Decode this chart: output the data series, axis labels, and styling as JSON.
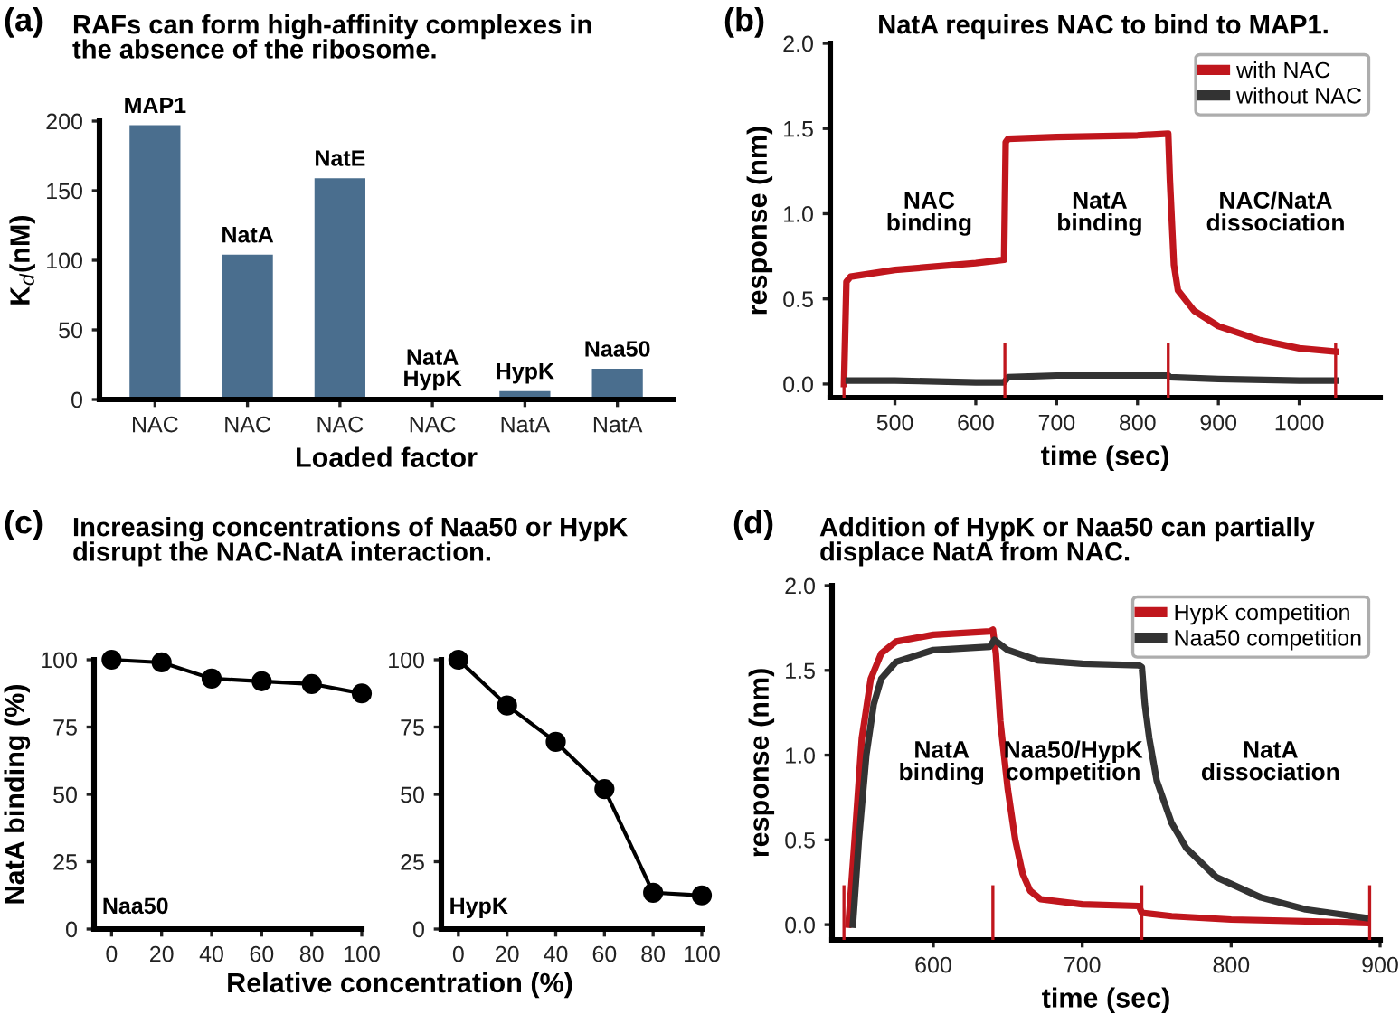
{
  "chart_data": [
    {
      "type": "bar",
      "title": "RAFs can form high-affinity complexes in\nthe absence of the ribosome.",
      "annotations": [
        "(a)"
      ],
      "xlabel": "Loaded factor",
      "ylabel": "K$_{d}$(nM)",
      "categories": [
        "NAC",
        "NAC",
        "NAC",
        "NAC",
        "NatA",
        "NatA"
      ],
      "values": [
        197,
        104,
        159,
        1,
        6,
        22
      ],
      "color": "#4a6e8e",
      "value_labels": [
        "MAP1",
        "NatA",
        "NatE",
        "NatA\nHypK",
        "HypK",
        "Naa50"
      ],
      "ylim": [
        0,
        200
      ],
      "yticks": [
        0,
        50,
        100,
        150,
        200
      ],
      "grid": false
    },
    {
      "type": "line",
      "title": "NatA requires NAC to bind to MAP1.",
      "xlabel": "time (sec)",
      "ylabel": "response (nm)",
      "annotations": [
        "(b)",
        "NAC\nbinding",
        "NatA\nbinding",
        "NAC/NatA\ndissociation"
      ],
      "series": [
        {
          "name": "with NAC",
          "color": "#c0161d",
          "x": [
            437,
            440,
            445,
            500,
            600,
            635,
            637,
            640,
            700,
            800,
            838,
            840,
            845,
            850,
            870,
            900,
            950,
            1000,
            1045
          ],
          "values": [
            0,
            0.6,
            0.63,
            0.67,
            0.71,
            0.73,
            1.42,
            1.44,
            1.45,
            1.46,
            1.47,
            1.2,
            0.7,
            0.55,
            0.43,
            0.34,
            0.26,
            0.21,
            0.19
          ]
        },
        {
          "name": "without NAC",
          "color": "#333333",
          "x": [
            440,
            500,
            600,
            635,
            640,
            700,
            800,
            838,
            840,
            900,
            1000,
            1045
          ],
          "values": [
            0.02,
            0.02,
            0.01,
            0.01,
            0.04,
            0.05,
            0.05,
            0.05,
            0.04,
            0.03,
            0.02,
            0.02
          ]
        }
      ],
      "ref_lines": [
        {
          "axis": "x",
          "value": 437,
          "color": "#c0161d"
        },
        {
          "axis": "x",
          "value": 636,
          "color": "#c0161d"
        },
        {
          "axis": "x",
          "value": 838,
          "color": "#c0161d"
        },
        {
          "axis": "x",
          "value": 1045,
          "color": "#c0161d"
        }
      ],
      "xlim": [
        420,
        1100
      ],
      "xticks": [
        500,
        600,
        700,
        800,
        900,
        1000
      ],
      "ylim": [
        -0.08,
        2.0
      ],
      "yticks": [
        {
          "value": 0,
          "label": "0.0"
        },
        {
          "value": 0.5,
          "label": "0.5"
        },
        {
          "value": 1.0,
          "label": "1.0"
        },
        {
          "value": 1.5,
          "label": "1.5"
        },
        {
          "value": 2.0,
          "label": "2.0"
        }
      ],
      "legend": "top right",
      "grid": false
    },
    {
      "type": "line",
      "title": "Increasing concentrations of Naa50 or HypK\ndisrupt the NAC-NatA interaction.",
      "annotations": [
        "(c)"
      ],
      "xlabel": "Relative concentration (%)",
      "ylabel": "NatA binding (%)",
      "series": [
        {
          "name": "Naa50",
          "color": "#000000",
          "x": [
            0,
            20,
            40,
            60,
            80,
            100
          ],
          "values": [
            100,
            99,
            93,
            92,
            91,
            87.5
          ]
        }
      ],
      "marker": "circle",
      "xlim": [
        -7,
        100
      ],
      "xticks": [
        0,
        20,
        40,
        60,
        80,
        100
      ],
      "ylim": [
        0,
        100
      ],
      "yticks": [
        0,
        25,
        50,
        75,
        100
      ],
      "grid": false
    },
    {
      "type": "line",
      "series": [
        {
          "name": "HypK",
          "color": "#000000",
          "x": [
            0,
            20,
            40,
            60,
            80,
            100
          ],
          "values": [
            100,
            83,
            69.5,
            52,
            13.5,
            12.5
          ]
        }
      ],
      "marker": "circle",
      "xlim": [
        -7,
        100
      ],
      "xticks": [
        0,
        20,
        40,
        60,
        80,
        100
      ],
      "ylim": [
        0,
        100
      ],
      "yticks": [
        0,
        25,
        50,
        75,
        100
      ],
      "grid": false
    },
    {
      "type": "line",
      "title": "Addition of HypK or Naa50 can partially\ndisplace NatA from NAC.",
      "xlabel": "time (sec)",
      "ylabel": "response (nm)",
      "annotations": [
        "(d)",
        "NatA\nbinding",
        "Naa50/HypK\ncompetition",
        "NatA\ndissociation"
      ],
      "series": [
        {
          "name": "HypK competition",
          "color": "#c0161d",
          "x": [
            543,
            548,
            552,
            558,
            565,
            575,
            600,
            638,
            640,
            642,
            645,
            650,
            655,
            660,
            665,
            672,
            700,
            738,
            740,
            760,
            800,
            850,
            890
          ],
          "values": [
            0,
            0.6,
            1.1,
            1.45,
            1.6,
            1.67,
            1.71,
            1.73,
            1.74,
            1.6,
            1.2,
            0.8,
            0.5,
            0.3,
            0.2,
            0.15,
            0.12,
            0.11,
            0.07,
            0.05,
            0.03,
            0.02,
            0.01
          ]
        },
        {
          "name": "Naa50 competition",
          "color": "#333333",
          "x": [
            546,
            550,
            555,
            560,
            565,
            575,
            600,
            638,
            641,
            650,
            670,
            700,
            738,
            740,
            742,
            745,
            750,
            760,
            770,
            790,
            820,
            850,
            890
          ],
          "values": [
            0,
            0.5,
            1.0,
            1.3,
            1.45,
            1.55,
            1.62,
            1.64,
            1.68,
            1.62,
            1.56,
            1.54,
            1.53,
            1.52,
            1.3,
            1.1,
            0.85,
            0.6,
            0.45,
            0.28,
            0.16,
            0.09,
            0.04
          ]
        }
      ],
      "ref_lines": [
        {
          "axis": "x",
          "value": 540,
          "color": "#c0161d"
        },
        {
          "axis": "x",
          "value": 640,
          "color": "#c0161d"
        },
        {
          "axis": "x",
          "value": 740,
          "color": "#c0161d"
        },
        {
          "axis": "x",
          "value": 893,
          "color": "#c0161d"
        }
      ],
      "xlim": [
        532,
        900
      ],
      "xticks": [
        600,
        700,
        800,
        900
      ],
      "ylim": [
        -0.09,
        2.0
      ],
      "yticks": [
        {
          "value": 0,
          "label": "0.0"
        },
        {
          "value": 0.5,
          "label": "0.5"
        },
        {
          "value": 1.0,
          "label": "1.0"
        },
        {
          "value": 1.5,
          "label": "1.5"
        },
        {
          "value": 2.0,
          "label": "2.0"
        }
      ],
      "legend": "top right",
      "grid": false
    }
  ]
}
